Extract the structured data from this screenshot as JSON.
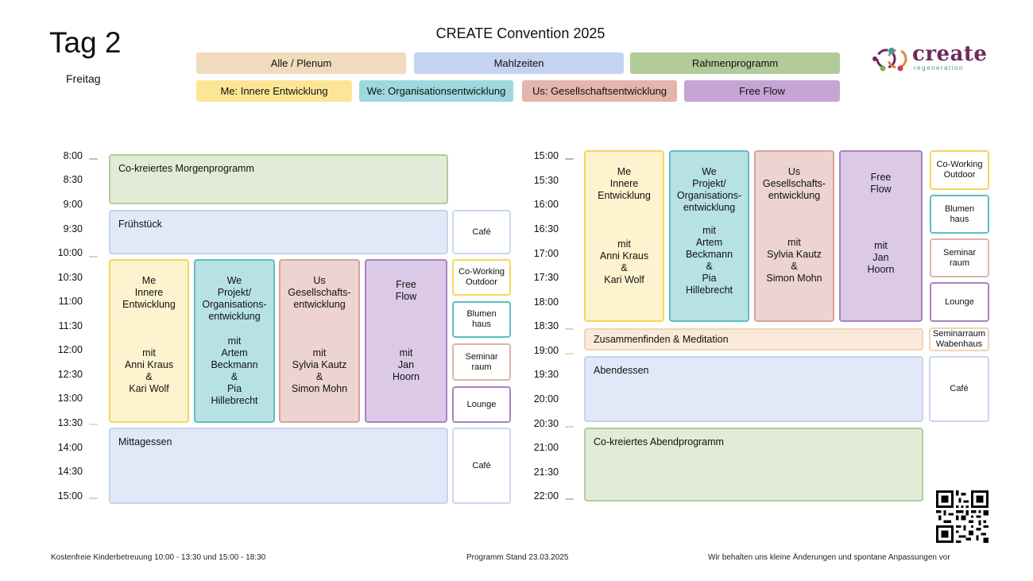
{
  "header": {
    "day": "Tag 2",
    "weekday": "Freitag",
    "title": "CREATE Convention 2025"
  },
  "legend": [
    {
      "label": "Alle / Plenum",
      "color": "#f0dbbd"
    },
    {
      "label": "Mahlzeiten",
      "color": "#c4d4f0"
    },
    {
      "label": "Rahmenprogramm",
      "color": "#b1cb99"
    },
    {
      "label": "Me: Innere Entwicklung",
      "color": "#fce696"
    },
    {
      "label": "We: Organisationsentwicklung",
      "color": "#9dd9dc"
    },
    {
      "label": "Us: Gesellschaftsentwicklung",
      "color": "#e4b5ab"
    },
    {
      "label": "Free Flow",
      "color": "#c6a5d4"
    }
  ],
  "logo": {
    "name": "create",
    "tagline": "regeneration"
  },
  "times_left": [
    "8:00",
    "8:30",
    "9:00",
    "9:30",
    "10:00",
    "10:30",
    "11:00",
    "11:30",
    "12:00",
    "12:30",
    "13:00",
    "13:30",
    "14:00",
    "14:30",
    "15:00"
  ],
  "times_right": [
    "15:00",
    "15:30",
    "16:00",
    "16:30",
    "17:00",
    "17:30",
    "18:00",
    "18:30",
    "19:00",
    "19:30",
    "20:00",
    "20:30",
    "21:00",
    "21:30",
    "22:00"
  ],
  "morning": {
    "morgen": "Co-kreiertes Morgenprogramm",
    "fruehstueck": "Frühstück",
    "mittag": "Mittagessen",
    "me": {
      "title": "Me\nInnere\nEntwicklung",
      "mit": "mit\nAnni Kraus\n&\nKari Wolf"
    },
    "we": {
      "title": "We\nProjekt/\nOrganisations-\nentwicklung",
      "mit": "mit\nArtem\nBeckmann\n&\nPia\nHillebrecht"
    },
    "us": {
      "title": "Us\nGesellschafts-\nentwicklung",
      "mit": "mit\nSylvia Kautz\n&\nSimon Mohn"
    },
    "ff": {
      "title": "Free\nFlow",
      "mit": "mit\nJan\nHoorn"
    },
    "rooms": {
      "cafe1": "Café",
      "cowork": "Co-Working\nOutdoor",
      "blumen": "Blumen\nhaus",
      "seminar": "Seminar\nraum",
      "lounge": "Lounge",
      "cafe2": "Café"
    }
  },
  "afternoon": {
    "me": {
      "title": "Me\nInnere\nEntwicklung",
      "mit": "mit\nAnni Kraus\n&\nKari Wolf"
    },
    "we": {
      "title": "We\nProjekt/\nOrganisations-\nentwicklung",
      "mit": "mit\nArtem\nBeckmann\n&\nPia\nHillebrecht"
    },
    "us": {
      "title": "Us\nGesellschafts-\nentwicklung",
      "mit": "mit\nSylvia Kautz\n&\nSimon Mohn"
    },
    "ff": {
      "title": "Free\nFlow",
      "mit": "mit\nJan\nHoorn"
    },
    "meditation": "Zusammenfinden & Meditation",
    "abendessen": "Abendessen",
    "abend": "Co-kreiertes Abendprogramm",
    "rooms": {
      "cowork": "Co-Working\nOutdoor",
      "blumen": "Blumen\nhaus",
      "seminar": "Seminar\nraum",
      "lounge": "Lounge",
      "wabenhaus": "Seminarraum\nWabenhaus",
      "cafe": "Café"
    }
  },
  "footer": {
    "left": "Kostenfreie Kinderbetreuung 10:00 - 13:30 und 15:00 - 18:30",
    "center": "Programm Stand 23.03.2025",
    "right": "Wir behalten uns kleine Änderungen und spontane Anpassungen vor"
  }
}
